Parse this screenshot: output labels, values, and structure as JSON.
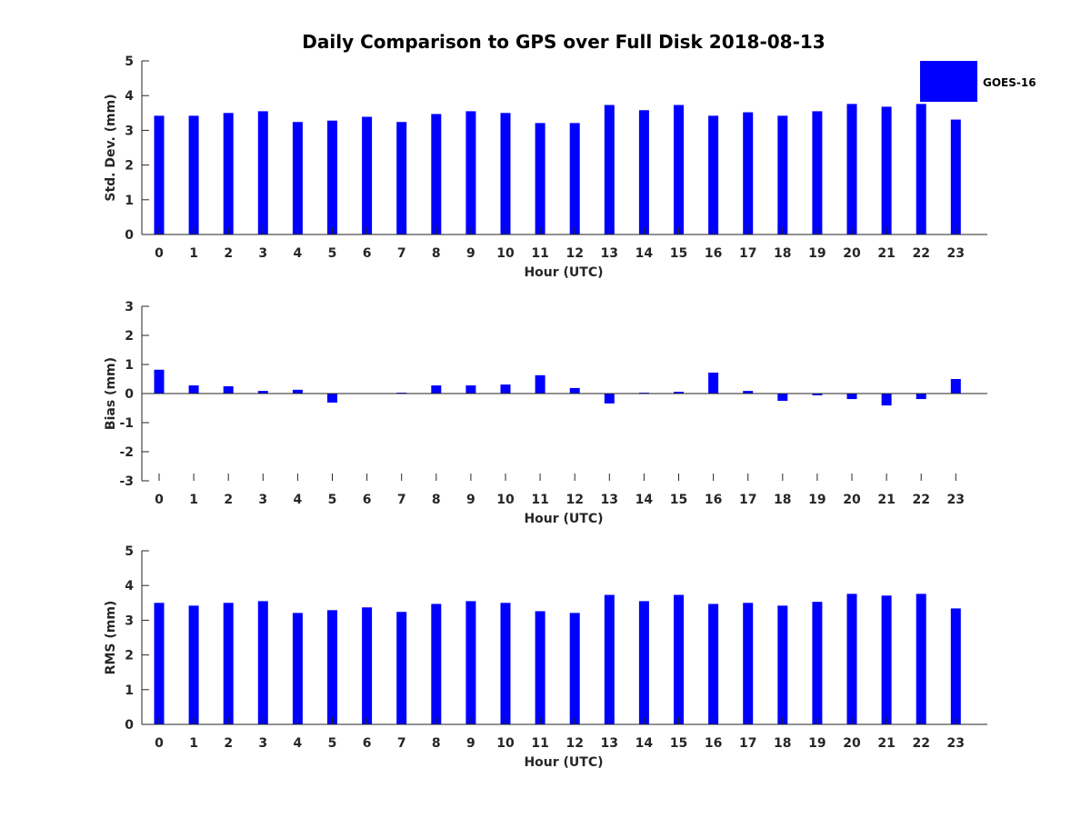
{
  "title": "Daily Comparison to GPS over Full Disk 2018-08-13",
  "bar_color": "#0000ff",
  "legend": {
    "label": "GOES-16",
    "placement": "top-right"
  },
  "chart_data": [
    {
      "type": "bar",
      "title": "Daily Comparison to GPS over Full Disk 2018-08-13",
      "xlabel": "Hour (UTC)",
      "ylabel": "Std. Dev. (mm)",
      "ylim": [
        0,
        5
      ],
      "yticks": [
        0,
        1,
        2,
        3,
        4,
        5
      ],
      "categories": [
        "0",
        "1",
        "2",
        "3",
        "4",
        "5",
        "6",
        "7",
        "8",
        "9",
        "10",
        "11",
        "12",
        "13",
        "14",
        "15",
        "16",
        "17",
        "18",
        "19",
        "20",
        "21",
        "22",
        "23"
      ],
      "series": [
        {
          "name": "GOES-16",
          "values": [
            3.42,
            3.42,
            3.5,
            3.55,
            3.24,
            3.28,
            3.39,
            3.24,
            3.47,
            3.55,
            3.5,
            3.21,
            3.21,
            3.73,
            3.58,
            3.73,
            3.42,
            3.52,
            3.42,
            3.55,
            3.76,
            3.68,
            3.76,
            3.31
          ]
        }
      ]
    },
    {
      "type": "bar",
      "xlabel": "Hour (UTC)",
      "ylabel": "Bias (mm)",
      "ylim": [
        -3,
        3
      ],
      "yticks": [
        -3,
        -2,
        -1,
        0,
        1,
        2,
        3
      ],
      "categories": [
        "0",
        "1",
        "2",
        "3",
        "4",
        "5",
        "6",
        "7",
        "8",
        "9",
        "10",
        "11",
        "12",
        "13",
        "14",
        "15",
        "16",
        "17",
        "18",
        "19",
        "20",
        "21",
        "22",
        "23"
      ],
      "series": [
        {
          "name": "GOES-16",
          "values": [
            0.82,
            0.28,
            0.25,
            0.09,
            0.13,
            -0.31,
            0.0,
            0.03,
            0.28,
            0.28,
            0.31,
            0.63,
            0.19,
            -0.34,
            0.03,
            0.06,
            0.72,
            0.09,
            -0.25,
            -0.06,
            -0.19,
            -0.41,
            -0.19,
            0.5
          ]
        }
      ]
    },
    {
      "type": "bar",
      "xlabel": "Hour (UTC)",
      "ylabel": "RMS (mm)",
      "ylim": [
        0,
        5
      ],
      "yticks": [
        0,
        1,
        2,
        3,
        4,
        5
      ],
      "categories": [
        "0",
        "1",
        "2",
        "3",
        "4",
        "5",
        "6",
        "7",
        "8",
        "9",
        "10",
        "11",
        "12",
        "13",
        "14",
        "15",
        "16",
        "17",
        "18",
        "19",
        "20",
        "21",
        "22",
        "23"
      ],
      "series": [
        {
          "name": "GOES-16",
          "values": [
            3.5,
            3.42,
            3.5,
            3.55,
            3.21,
            3.29,
            3.37,
            3.24,
            3.47,
            3.55,
            3.5,
            3.26,
            3.21,
            3.73,
            3.55,
            3.73,
            3.47,
            3.5,
            3.42,
            3.53,
            3.76,
            3.71,
            3.76,
            3.34
          ]
        }
      ]
    }
  ]
}
